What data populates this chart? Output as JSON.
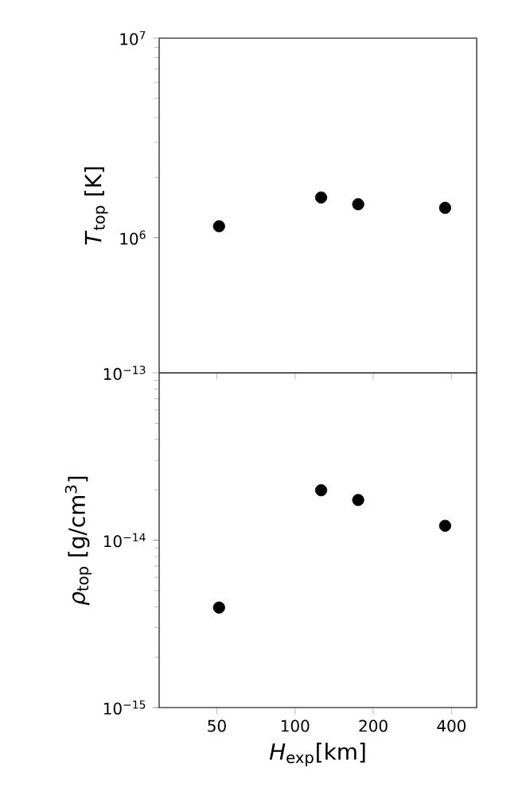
{
  "chart_data": [
    {
      "type": "scatter",
      "x": [
        51,
        126,
        175,
        378
      ],
      "ylabel": "*T*$_{top}$ [K]",
      "series": [
        {
          "color": "#000000",
          "values": [
            1140000.0,
            1590000.0,
            1470000.0,
            1410000.0
          ]
        }
      ],
      "log": "xy",
      "xlim": [
        30,
        500
      ],
      "ylim": [
        210000.0,
        10000000.0
      ],
      "xticks": [
        50,
        100,
        200,
        400
      ],
      "yticks": [
        {
          "value": 1000000.0,
          "label": "10$^{6}$"
        },
        {
          "value": 10000000.0,
          "label": "10$^{7}$"
        }
      ],
      "tick_labels": "y",
      "marker": "circle"
    },
    {
      "type": "scatter",
      "x": [
        51,
        126,
        175,
        378
      ],
      "ylabel": "*ρ*$_{top}$ [g/cm$^{3}$]",
      "xlabel": "*H*$_{exp}$[km]",
      "series": [
        {
          "color": "#000000",
          "values": [
            3.96e-15,
            1.99e-14,
            1.74e-14,
            1.22e-14
          ]
        }
      ],
      "log": "xy",
      "xlim": [
        30,
        500
      ],
      "ylim": [
        1e-15,
        1e-13
      ],
      "xticks": [
        50,
        100,
        200,
        400
      ],
      "yticks": [
        {
          "value": 1e-15,
          "label": "10$^{−15}$"
        },
        {
          "value": 1e-14,
          "label": "10$^{−14}$"
        },
        {
          "value": 1e-13,
          "label": "10$^{−13}$"
        }
      ],
      "marker": "circle"
    }
  ]
}
